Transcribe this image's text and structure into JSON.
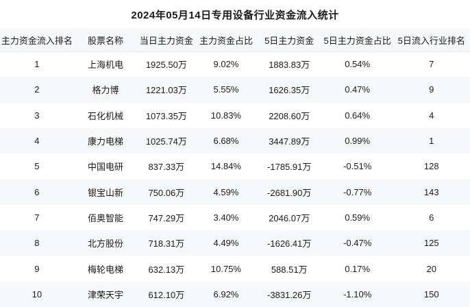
{
  "page_title": "2024年05月14日专用设备行业资金流入统计",
  "chart_data": {
    "type": "table",
    "title": "2024年05月14日专用设备行业资金流入统计",
    "columns": [
      "主力资金流入排名",
      "股票名称",
      "当日主力资金",
      "主力资金占比",
      "5日主力资金",
      "5日主力资金占比",
      "5日流入行业排名"
    ],
    "rows": [
      [
        "1",
        "上海机电",
        "1925.50万",
        "9.02%",
        "1883.83万",
        "0.54%",
        "7"
      ],
      [
        "2",
        "格力博",
        "1221.03万",
        "5.55%",
        "1626.35万",
        "0.47%",
        "9"
      ],
      [
        "3",
        "石化机械",
        "1073.35万",
        "10.83%",
        "2208.60万",
        "0.64%",
        "4"
      ],
      [
        "4",
        "康力电梯",
        "1025.74万",
        "6.68%",
        "3447.89万",
        "0.99%",
        "1"
      ],
      [
        "5",
        "中国电研",
        "837.33万",
        "14.84%",
        "-1785.91万",
        "-0.51%",
        "128"
      ],
      [
        "6",
        "银宝山新",
        "750.06万",
        "4.59%",
        "-2681.90万",
        "-0.77%",
        "143"
      ],
      [
        "7",
        "佰奥智能",
        "747.29万",
        "3.40%",
        "2046.07万",
        "0.59%",
        "6"
      ],
      [
        "8",
        "北方股份",
        "718.31万",
        "4.49%",
        "-1626.41万",
        "-0.47%",
        "125"
      ],
      [
        "9",
        "梅轮电梯",
        "632.13万",
        "10.75%",
        "588.51万",
        "0.17%",
        "20"
      ],
      [
        "10",
        "津荣天宇",
        "612.10万",
        "6.92%",
        "-3831.26万",
        "-1.10%",
        "150"
      ]
    ],
    "layout": {
      "grid": false,
      "striped_rows": true,
      "cell_align": "center"
    }
  },
  "colors": {
    "header_bg": "#f7f8fa",
    "stripe_bg": "#f7f8fa",
    "row_bg": "#ffffff",
    "header_border": "#ebedf0",
    "text": "#1a1a1a"
  }
}
